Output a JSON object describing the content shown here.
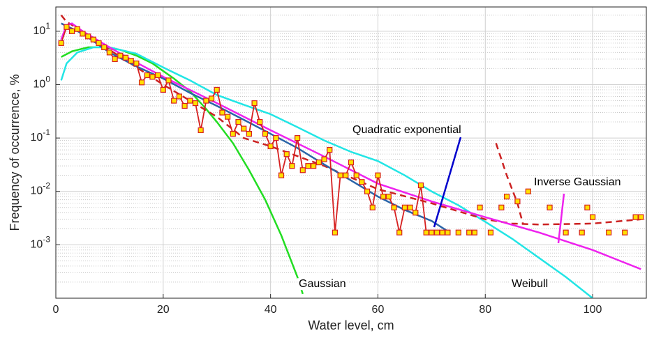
{
  "chart_data": {
    "type": "line",
    "xlabel": "Water level, cm",
    "ylabel": "Frequency of occurrence, %",
    "xlim": [
      0,
      110
    ],
    "xticks": [
      0,
      20,
      40,
      60,
      80,
      100
    ],
    "ylim": [
      0.0001,
      28.5
    ],
    "yscale": "log",
    "yticks": [
      {
        "value": 0.001,
        "label": "10^-3"
      },
      {
        "value": 0.01,
        "label": "10^-2"
      },
      {
        "value": 0.1,
        "label": "10^-1"
      },
      {
        "value": 1,
        "label": "10^0"
      },
      {
        "value": 10,
        "label": "10^1"
      }
    ],
    "yminorticks": [
      0.0002,
      0.0003,
      0.0004,
      0.0005,
      0.0006,
      0.0007,
      0.0008,
      0.0009,
      0.002,
      0.003,
      0.004,
      0.005,
      0.006,
      0.007,
      0.008,
      0.009,
      0.02,
      0.03,
      0.04,
      0.05,
      0.06,
      0.07,
      0.08,
      0.09,
      0.2,
      0.3,
      0.4,
      0.5,
      0.6,
      0.7,
      0.8,
      0.9,
      2,
      3,
      4,
      5,
      6,
      7,
      8,
      9,
      20
    ],
    "grid": true,
    "series": [
      {
        "color": "#22dd22",
        "line": true,
        "marker": false,
        "dashed": false,
        "x": [
          1,
          3,
          6,
          9,
          12,
          15,
          18,
          20,
          22,
          25,
          28,
          30,
          33,
          36,
          39,
          42,
          45,
          46
        ],
        "values": [
          3.3,
          4.2,
          5,
          5,
          4.5,
          3.5,
          2.5,
          1.8,
          1.3,
          0.75,
          0.35,
          0.2,
          0.08,
          0.025,
          0.007,
          0.0015,
          0.00025,
          0.00012
        ]
      },
      {
        "color": "#22e5e5",
        "line": true,
        "marker": false,
        "dashed": false,
        "x": [
          1,
          2,
          4,
          7,
          10,
          15,
          20,
          25,
          30,
          35,
          40,
          45,
          50,
          55,
          60,
          65,
          70,
          75,
          80,
          85,
          90,
          95,
          100
        ],
        "values": [
          1.2,
          2.5,
          4,
          5,
          5,
          3.8,
          2.1,
          1.2,
          0.64,
          0.42,
          0.28,
          0.16,
          0.09,
          0.055,
          0.037,
          0.02,
          0.01,
          0.0055,
          0.0027,
          0.0013,
          0.00057,
          0.00025,
          0.0001
        ]
      },
      {
        "color": "#cc2222",
        "line": true,
        "marker": false,
        "dashed": true,
        "x": [
          1,
          2,
          5,
          10,
          20,
          30,
          35,
          40,
          50,
          60,
          70,
          80,
          85,
          90,
          100,
          109
        ],
        "values": [
          20,
          15,
          10,
          4.5,
          1,
          0.25,
          0.1,
          0.07,
          0.03,
          0.011,
          0.006,
          0.003,
          0.0025,
          0.0024,
          0.0025,
          0.003
        ]
      },
      {
        "color": "#cc2222",
        "line": true,
        "marker": false,
        "dashed": true,
        "x": [
          82,
          84,
          86,
          87
        ],
        "values": [
          0.08,
          0.02,
          0.006,
          0.0025
        ]
      },
      {
        "color": "#ee22ee",
        "line": true,
        "marker": false,
        "dashed": false,
        "x": [
          1,
          2,
          3,
          5,
          10,
          15,
          20,
          30,
          40,
          50,
          60,
          70,
          80,
          90,
          100,
          109
        ],
        "values": [
          7,
          13,
          14,
          10,
          5,
          2.6,
          1.4,
          0.45,
          0.14,
          0.045,
          0.014,
          0.0065,
          0.0033,
          0.0017,
          0.0008,
          0.00035
        ]
      },
      {
        "color": "#2a64a8",
        "line": true,
        "marker": false,
        "dashed": false,
        "x": [
          1,
          5,
          10,
          15,
          20,
          25,
          30,
          35,
          40,
          45,
          50,
          55,
          60,
          65,
          70,
          73
        ],
        "values": [
          14,
          9,
          4,
          2.2,
          1.3,
          0.7,
          0.4,
          0.22,
          0.12,
          0.065,
          0.032,
          0.016,
          0.008,
          0.0045,
          0.0028,
          0.0018
        ]
      },
      {
        "color": "#d62020",
        "line": true,
        "marker": true,
        "dashed": false,
        "x": [
          1,
          2,
          3,
          4,
          5,
          6,
          7,
          8,
          9,
          10,
          11,
          12,
          13,
          14,
          15,
          16,
          17,
          18,
          19,
          20,
          21,
          22,
          23,
          24,
          25,
          26,
          27,
          28,
          29,
          30,
          31,
          32,
          33,
          34,
          35,
          36,
          37,
          38,
          39,
          40,
          41,
          42,
          43,
          44,
          45,
          46,
          47,
          48,
          49,
          50,
          51,
          52,
          53,
          54,
          55,
          56,
          57,
          58,
          59,
          60,
          61,
          62,
          63,
          64,
          65,
          66,
          67,
          68,
          69,
          70,
          71,
          72,
          73
        ],
        "values": [
          6,
          12,
          10,
          11,
          9,
          8,
          7,
          6,
          5,
          4,
          3,
          3.5,
          3.2,
          2.8,
          2.5,
          1.1,
          1.5,
          1.4,
          1.5,
          0.8,
          1.2,
          0.5,
          0.6,
          0.4,
          0.5,
          0.45,
          0.14,
          0.5,
          0.55,
          0.8,
          0.3,
          0.25,
          0.12,
          0.2,
          0.15,
          0.12,
          0.45,
          0.2,
          0.12,
          0.07,
          0.1,
          0.02,
          0.05,
          0.03,
          0.1,
          0.025,
          0.03,
          0.03,
          0.035,
          0.04,
          0.06,
          0.0017,
          0.02,
          0.02,
          0.035,
          0.02,
          0.015,
          0.01,
          0.005,
          0.02,
          0.008,
          0.008,
          0.005,
          0.0017,
          0.005,
          0.005,
          0.004,
          0.013,
          0.0017,
          0.0017,
          0.0017,
          0.0017,
          0.0017
        ]
      },
      {
        "color": "#d62020",
        "line": false,
        "marker": true,
        "dashed": false,
        "x": [
          75,
          77,
          78,
          79,
          81,
          83,
          84,
          86,
          88,
          92,
          95,
          98,
          99,
          100,
          103,
          106,
          108,
          109
        ],
        "values": [
          0.0017,
          0.0017,
          0.0017,
          0.005,
          0.0017,
          0.005,
          0.008,
          0.0065,
          0.01,
          0.005,
          0.0017,
          0.0017,
          0.005,
          0.0033,
          0.0017,
          0.0017,
          0.0033,
          0.0033
        ]
      }
    ],
    "marker_fill": "#ffe000",
    "annotations": [
      {
        "text": "Quadratic exponential",
        "color": "#0000cc"
      },
      {
        "text": "Inverse Gaussian",
        "color": "#ee22ee"
      },
      {
        "text": "Gaussian",
        "color": "#000000"
      },
      {
        "text": "Weibull",
        "color": "#000000"
      }
    ]
  }
}
